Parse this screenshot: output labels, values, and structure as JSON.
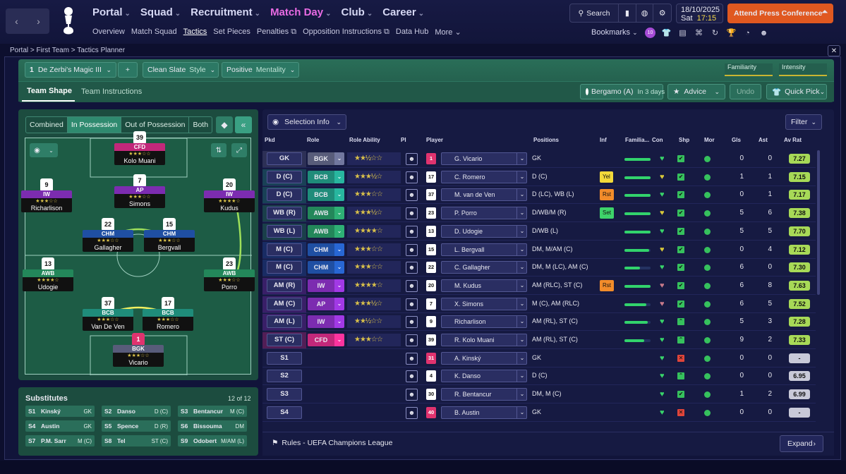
{
  "topnav": {
    "items": [
      {
        "label": "Portal",
        "active": false
      },
      {
        "label": "Squad",
        "active": false
      },
      {
        "label": "Recruitment",
        "active": false
      },
      {
        "label": "Match Day",
        "active": true
      },
      {
        "label": "Club",
        "active": false
      },
      {
        "label": "Career",
        "active": false
      }
    ],
    "sub": [
      {
        "label": "Overview",
        "active": false
      },
      {
        "label": "Match Squad",
        "active": false
      },
      {
        "label": "Tactics",
        "active": true
      },
      {
        "label": "Set Pieces",
        "active": false
      },
      {
        "label": "Penalties ⧉",
        "active": false
      },
      {
        "label": "Opposition Instructions ⧉",
        "active": false
      },
      {
        "label": "Data Hub",
        "active": false
      },
      {
        "label": "More ⌄",
        "active": false
      }
    ],
    "search_label": "Search",
    "date": "18/10/2025",
    "day": "Sat",
    "time": "17:15",
    "press_label": "Attend Press Conference",
    "bookmarks_label": "Bookmarks",
    "press_color": "#e05820"
  },
  "breadcrumb": {
    "items": [
      "Portal",
      "First Team",
      "Tactics Planner"
    ],
    "sep": " > "
  },
  "tactic": {
    "slot": "1",
    "name": "De Zerbi's Magic III",
    "add": "+",
    "style_value": "Clean Slate",
    "style_label": "Style",
    "mentality_value": "Positive",
    "mentality_label": "Mentality",
    "familiarity_label": "Familiarity",
    "intensity_label": "Intensity",
    "tabs": [
      "Team Shape",
      "Team Instructions"
    ],
    "next_match": "Bergamo (A)",
    "next_in": "In 3 days",
    "advice_label": "Advice",
    "undo_label": "Undo",
    "quickpick_label": "Quick Pick"
  },
  "pitch": {
    "tabs": [
      {
        "label": "Combined",
        "active": false
      },
      {
        "label": "In Possession",
        "active": true
      },
      {
        "label": "Out of Possession",
        "active": false
      },
      {
        "label": "Both",
        "active": false
      }
    ],
    "players": [
      {
        "num": "39",
        "role": "CFD",
        "stars": "★★★☆☆",
        "name": "Kolo Muani",
        "color": "#c2287a",
        "key": "cfd"
      },
      {
        "num": "9",
        "role": "IW",
        "stars": "★★★☆☆",
        "name": "Richarlison",
        "color": "#7c2cb0",
        "key": "iw-left"
      },
      {
        "num": "7",
        "role": "AP",
        "stars": "★★★☆☆",
        "name": "Simons",
        "color": "#7c2cb0",
        "key": "ap"
      },
      {
        "num": "20",
        "role": "IW",
        "stars": "★★★★☆",
        "name": "Kudus",
        "color": "#7c2cb0",
        "key": "iw-right"
      },
      {
        "num": "22",
        "role": "CHM",
        "stars": "★★★☆☆",
        "name": "Gallagher",
        "color": "#1f4fa3",
        "key": "chm-left"
      },
      {
        "num": "15",
        "role": "CHM",
        "stars": "★★★☆☆",
        "name": "Bergvall",
        "color": "#1f4fa3",
        "key": "chm-right"
      },
      {
        "num": "13",
        "role": "AWB",
        "stars": "★★★★☆",
        "name": "Udogie",
        "color": "#23875a",
        "key": "awb-left"
      },
      {
        "num": "23",
        "role": "AWB",
        "stars": "★★★☆☆",
        "name": "Porro",
        "color": "#23875a",
        "key": "awb-right"
      },
      {
        "num": "37",
        "role": "BCB",
        "stars": "★★★☆☆",
        "name": "Van De Ven",
        "color": "#1f8c7a",
        "key": "bcb-left"
      },
      {
        "num": "17",
        "role": "BCB",
        "stars": "★★★☆☆",
        "name": "Romero",
        "color": "#1f8c7a",
        "key": "bcb-right"
      },
      {
        "num": "1",
        "role": "BGK",
        "stars": "★★★☆☆",
        "name": "Vicario",
        "color": "#585c7a",
        "key": "bgk"
      }
    ]
  },
  "substitutes": {
    "title": "Substitutes",
    "count": "12 of 12",
    "items": [
      {
        "slot": "S1",
        "name": "Kinský",
        "pos": "GK"
      },
      {
        "slot": "S2",
        "name": "Danso",
        "pos": "D (C)"
      },
      {
        "slot": "S3",
        "name": "Bentancur",
        "pos": "M (C)"
      },
      {
        "slot": "S4",
        "name": "Austin",
        "pos": "GK"
      },
      {
        "slot": "S5",
        "name": "Spence",
        "pos": "D (R)"
      },
      {
        "slot": "S6",
        "name": "Bissouma",
        "pos": "DM"
      },
      {
        "slot": "S7",
        "name": "P.M. Sarr",
        "pos": "M (C)"
      },
      {
        "slot": "S8",
        "name": "Tel",
        "pos": "ST (C)"
      },
      {
        "slot": "S9",
        "name": "Odobert",
        "pos": "M/AM (L)"
      }
    ]
  },
  "table": {
    "selection_label": "Selection Info",
    "filter_label": "Filter",
    "headers": [
      "Pkd",
      "Role",
      "Role Ability",
      "PI",
      "Player",
      "Positions",
      "Inf",
      "Familia...",
      "Con",
      "Shp",
      "Mor",
      "Gls",
      "Ast",
      "Av Rat"
    ],
    "rows": [
      {
        "pkd": "GK",
        "role": "BGK",
        "rolecolor": "#585c7a",
        "ability": "★★½☆☆",
        "kit": "1",
        "gk": true,
        "player": "G. Vicario",
        "pos": "GK",
        "inf": "",
        "infcolor": "",
        "fam": 1.0,
        "con": "♥",
        "concolor": "#38d46a",
        "shp": "✔",
        "shpcolor": "#36c15d",
        "gls": "0",
        "ast": "0",
        "rat": "7.27",
        "ratcolor": "#a7d957"
      },
      {
        "pkd": "D (C)",
        "role": "BCB",
        "rolecolor": "#1f8c7a",
        "ability": "★★★½☆",
        "kit": "17",
        "gk": false,
        "player": "C. Romero",
        "pos": "D (C)",
        "inf": "Yel",
        "infcolor": "#f2d93a",
        "fam": 1.0,
        "con": "♥",
        "concolor": "#d8c83a",
        "shp": "✔",
        "shpcolor": "#36c15d",
        "gls": "1",
        "ast": "1",
        "rat": "7.15",
        "ratcolor": "#a7d957"
      },
      {
        "pkd": "D (C)",
        "role": "BCB",
        "rolecolor": "#1f8c7a",
        "ability": "★★★☆☆",
        "kit": "37",
        "gk": false,
        "player": "M. van de Ven",
        "pos": "D (LC), WB (L)",
        "inf": "Rst",
        "infcolor": "#f28c2a",
        "fam": 1.0,
        "con": "♥",
        "concolor": "#38d46a",
        "shp": "✔",
        "shpcolor": "#36c15d",
        "gls": "0",
        "ast": "1",
        "rat": "7.17",
        "ratcolor": "#a7d957"
      },
      {
        "pkd": "WB (R)",
        "role": "AWB",
        "rolecolor": "#23875a",
        "ability": "★★★½☆",
        "kit": "23",
        "gk": false,
        "player": "P. Porro",
        "pos": "D/WB/M (R)",
        "inf": "Set",
        "infcolor": "#3ed36a",
        "fam": 1.0,
        "con": "♥",
        "concolor": "#d8c83a",
        "shp": "✔",
        "shpcolor": "#36c15d",
        "gls": "5",
        "ast": "6",
        "rat": "7.38",
        "ratcolor": "#a7d957"
      },
      {
        "pkd": "WB (L)",
        "role": "AWB",
        "rolecolor": "#23875a",
        "ability": "★★★★☆",
        "kit": "13",
        "gk": false,
        "player": "D. Udogie",
        "pos": "D/WB (L)",
        "inf": "",
        "infcolor": "",
        "fam": 1.0,
        "con": "♥",
        "concolor": "#38d46a",
        "shp": "✔",
        "shpcolor": "#36c15d",
        "gls": "5",
        "ast": "5",
        "rat": "7.70",
        "ratcolor": "#a7d957"
      },
      {
        "pkd": "M (C)",
        "role": "CHM",
        "rolecolor": "#1f4fa3",
        "ability": "★★★☆☆",
        "kit": "15",
        "gk": false,
        "player": "L. Bergvall",
        "pos": "DM, M/AM (C)",
        "inf": "",
        "infcolor": "",
        "fam": 0.95,
        "con": "♥",
        "concolor": "#d8c83a",
        "shp": "✔",
        "shpcolor": "#36c15d",
        "gls": "0",
        "ast": "4",
        "rat": "7.12",
        "ratcolor": "#a7d957"
      },
      {
        "pkd": "M (C)",
        "role": "CHM",
        "rolecolor": "#1f4fa3",
        "ability": "★★★☆☆",
        "kit": "22",
        "gk": false,
        "player": "C. Gallagher",
        "pos": "DM, M (LC), AM (C)",
        "inf": "",
        "infcolor": "",
        "fam": 0.6,
        "con": "♥",
        "concolor": "#38d46a",
        "shp": "✔",
        "shpcolor": "#36c15d",
        "gls": "6",
        "ast": "0",
        "rat": "7.30",
        "ratcolor": "#a7d957"
      },
      {
        "pkd": "AM (R)",
        "role": "IW",
        "rolecolor": "#7c2cb0",
        "ability": "★★★★☆",
        "kit": "20",
        "gk": false,
        "player": "M. Kudus",
        "pos": "AM (RLC), ST (C)",
        "inf": "Rst",
        "infcolor": "#f28c2a",
        "fam": 1.0,
        "con": "♥",
        "concolor": "#c87a8a",
        "shp": "✔",
        "shpcolor": "#36c15d",
        "gls": "6",
        "ast": "8",
        "rat": "7.63",
        "ratcolor": "#a7d957"
      },
      {
        "pkd": "AM (C)",
        "role": "AP",
        "rolecolor": "#7c2cb0",
        "ability": "★★★½☆",
        "kit": "7",
        "gk": false,
        "player": "X. Simons",
        "pos": "M (C), AM (RLC)",
        "inf": "",
        "infcolor": "",
        "fam": 0.85,
        "con": "♥",
        "concolor": "#c87a8a",
        "shp": "✔",
        "shpcolor": "#36c15d",
        "gls": "6",
        "ast": "5",
        "rat": "7.52",
        "ratcolor": "#a7d957"
      },
      {
        "pkd": "AM (L)",
        "role": "IW",
        "rolecolor": "#7c2cb0",
        "ability": "★★½☆☆",
        "kit": "9",
        "gk": false,
        "player": "Richarlison",
        "pos": "AM (RL), ST (C)",
        "inf": "",
        "infcolor": "",
        "fam": 0.9,
        "con": "♥",
        "concolor": "#38d46a",
        "shp": "⌃",
        "shpcolor": "#36c15d",
        "gls": "5",
        "ast": "3",
        "rat": "7.28",
        "ratcolor": "#a7d957"
      },
      {
        "pkd": "ST (C)",
        "role": "CFD",
        "rolecolor": "#c2287a",
        "ability": "★★★☆☆",
        "kit": "39",
        "gk": false,
        "player": "R. Kolo Muani",
        "pos": "AM (RL), ST (C)",
        "inf": "",
        "infcolor": "",
        "fam": 0.75,
        "con": "♥",
        "concolor": "#38d46a",
        "shp": "⌃",
        "shpcolor": "#36c15d",
        "gls": "9",
        "ast": "2",
        "rat": "7.33",
        "ratcolor": "#a7d957"
      },
      {
        "pkd": "S1",
        "role": "",
        "rolecolor": "",
        "ability": "",
        "kit": "31",
        "gk": true,
        "player": "A. Kinský",
        "pos": "GK",
        "inf": "",
        "infcolor": "",
        "fam": 0,
        "con": "♥",
        "concolor": "#38d46a",
        "shp": "✕",
        "shpcolor": "#e0453a",
        "gls": "0",
        "ast": "0",
        "rat": "-",
        "ratcolor": "#c8c9d8"
      },
      {
        "pkd": "S2",
        "role": "",
        "rolecolor": "",
        "ability": "",
        "kit": "4",
        "gk": false,
        "player": "K. Danso",
        "pos": "D (C)",
        "inf": "",
        "infcolor": "",
        "fam": 0,
        "con": "♥",
        "concolor": "#38d46a",
        "shp": "⌃",
        "shpcolor": "#36c15d",
        "gls": "0",
        "ast": "0",
        "rat": "6.95",
        "ratcolor": "#c8c9d8"
      },
      {
        "pkd": "S3",
        "role": "",
        "rolecolor": "",
        "ability": "",
        "kit": "30",
        "gk": false,
        "player": "R. Bentancur",
        "pos": "DM, M (C)",
        "inf": "",
        "infcolor": "",
        "fam": 0,
        "con": "♥",
        "concolor": "#38d46a",
        "shp": "✔",
        "shpcolor": "#36c15d",
        "gls": "1",
        "ast": "2",
        "rat": "6.99",
        "ratcolor": "#c8c9d8"
      },
      {
        "pkd": "S4",
        "role": "",
        "rolecolor": "",
        "ability": "",
        "kit": "40",
        "gk": true,
        "player": "B. Austin",
        "pos": "GK",
        "inf": "",
        "infcolor": "",
        "fam": 0,
        "con": "♥",
        "concolor": "#38d46a",
        "shp": "✕",
        "shpcolor": "#e0453a",
        "gls": "0",
        "ast": "0",
        "rat": "-",
        "ratcolor": "#c8c9d8"
      }
    ],
    "rules_label": "Rules - UEFA Champions League",
    "expand_label": "Expand"
  }
}
